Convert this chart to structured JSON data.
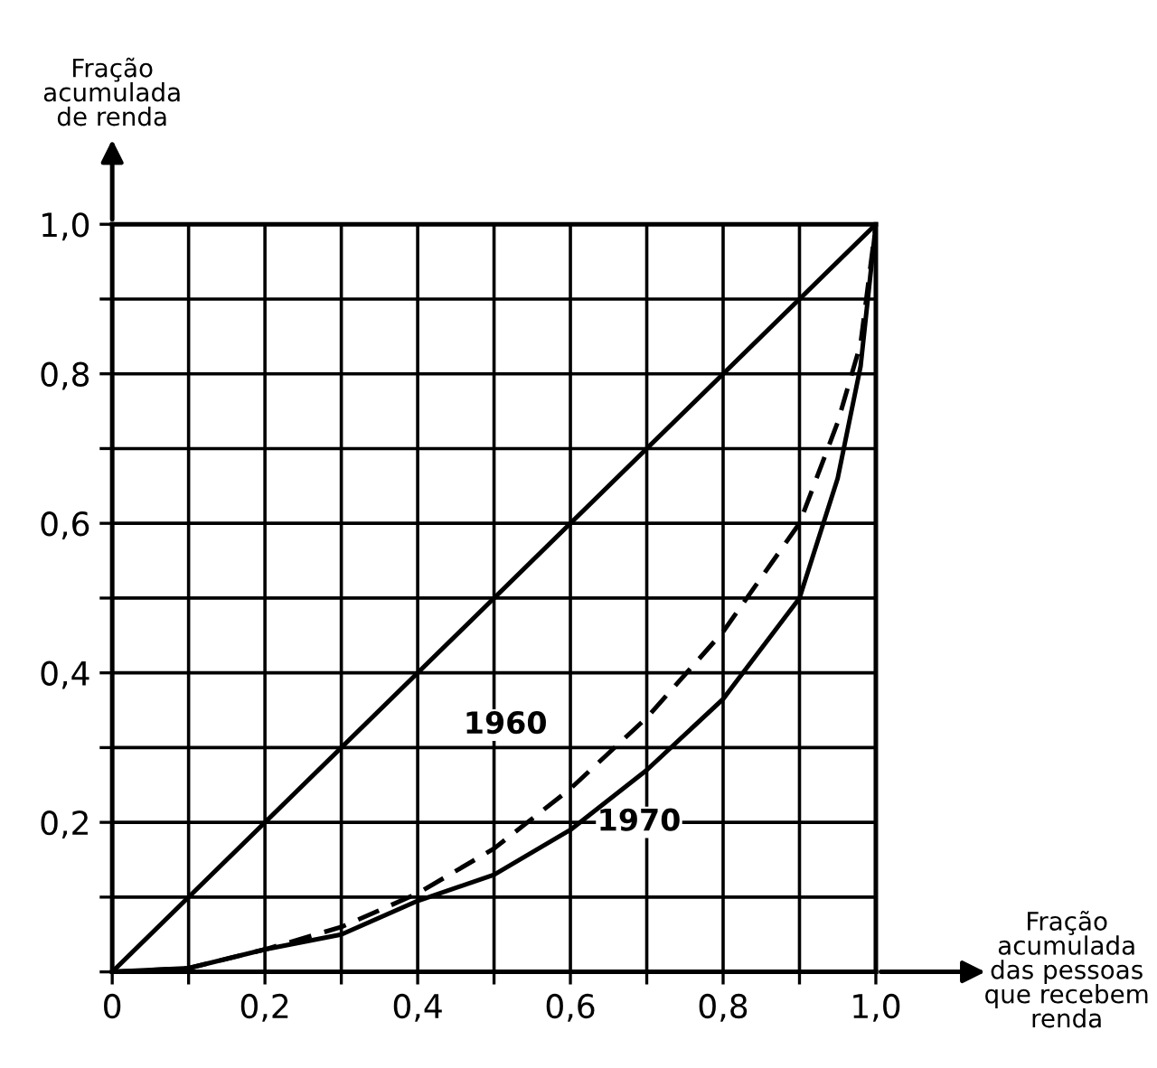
{
  "chart_data": {
    "type": "line",
    "xlabel": "Fração\nacumulada\ndas pessoas\nque recebem\nrenda",
    "ylabel": "Fração\nacumulada\nde renda",
    "xlim": [
      0,
      1.0
    ],
    "ylim": [
      0,
      1.0
    ],
    "xticks": [
      {
        "value": 0,
        "label": "0"
      },
      {
        "value": 0.1,
        "label": null
      },
      {
        "value": 0.2,
        "label": "0,2"
      },
      {
        "value": 0.3,
        "label": null
      },
      {
        "value": 0.4,
        "label": "0,4"
      },
      {
        "value": 0.5,
        "label": null
      },
      {
        "value": 0.6,
        "label": "0,6"
      },
      {
        "value": 0.7,
        "label": null
      },
      {
        "value": 0.8,
        "label": "0,8"
      },
      {
        "value": 0.9,
        "label": null
      },
      {
        "value": 1.0,
        "label": "1,0"
      }
    ],
    "yticks": [
      {
        "value": 0,
        "label": null
      },
      {
        "value": 0.1,
        "label": null
      },
      {
        "value": 0.2,
        "label": "0,2"
      },
      {
        "value": 0.3,
        "label": null
      },
      {
        "value": 0.4,
        "label": "0,4"
      },
      {
        "value": 0.5,
        "label": null
      },
      {
        "value": 0.6,
        "label": "0,6"
      },
      {
        "value": 0.7,
        "label": null
      },
      {
        "value": 0.8,
        "label": "0,8"
      },
      {
        "value": 0.9,
        "label": null
      },
      {
        "value": 1.0,
        "label": "1,0"
      }
    ],
    "grid": true,
    "legend": false,
    "marker": "none",
    "series": [
      {
        "color": "#000000",
        "line_style": "solid",
        "x": [
          0,
          1.0
        ],
        "values": [
          0,
          1.0
        ]
      },
      {
        "color": "#000000",
        "line_style": "dashed",
        "x": [
          0,
          0.1,
          0.2,
          0.3,
          0.4,
          0.5,
          0.6,
          0.7,
          0.8,
          0.9,
          0.95,
          0.98,
          1.0
        ],
        "values": [
          0,
          0.005,
          0.03,
          0.06,
          0.105,
          0.165,
          0.245,
          0.34,
          0.455,
          0.6,
          0.735,
          0.84,
          1.0
        ]
      },
      {
        "color": "#000000",
        "line_style": "solid",
        "x": [
          0,
          0.1,
          0.2,
          0.3,
          0.4,
          0.5,
          0.6,
          0.7,
          0.8,
          0.9,
          0.95,
          0.98,
          1.0
        ],
        "values": [
          0,
          0.005,
          0.03,
          0.05,
          0.095,
          0.13,
          0.19,
          0.27,
          0.365,
          0.5,
          0.66,
          0.81,
          1.0
        ]
      }
    ],
    "annotations": [
      "1960",
      "1970"
    ]
  }
}
